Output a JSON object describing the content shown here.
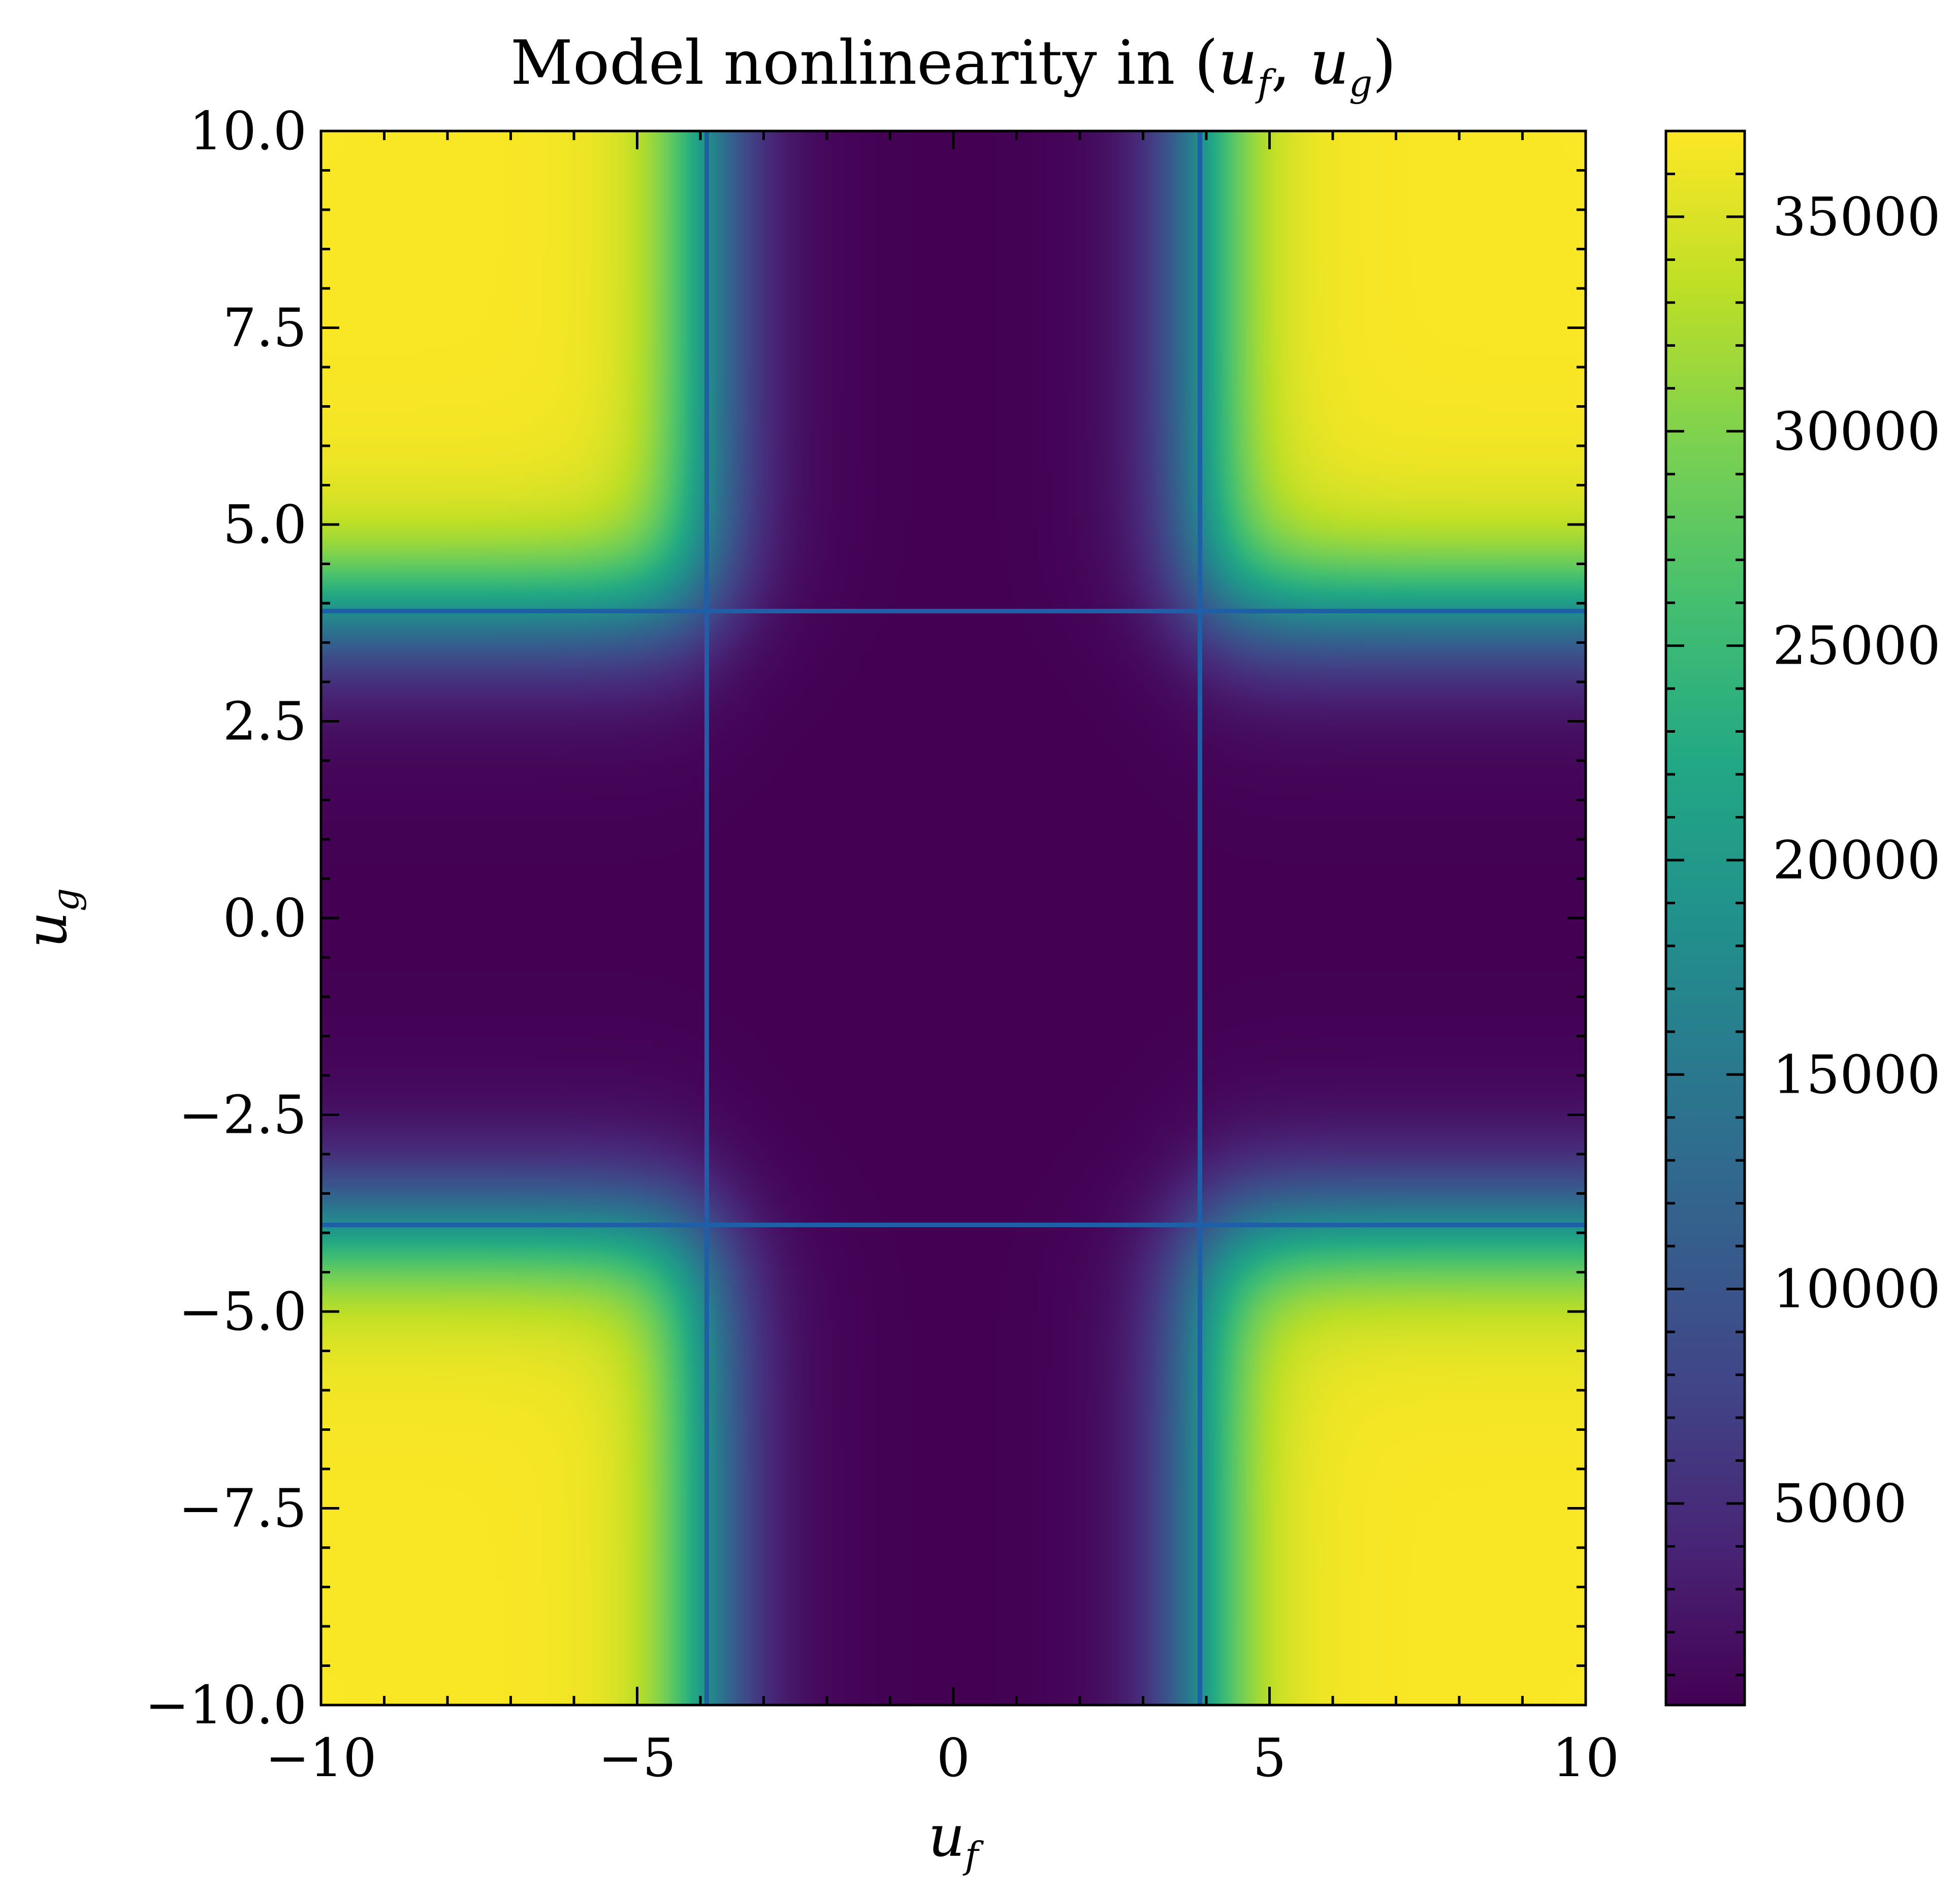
{
  "chart_data": {
    "type": "heatmap",
    "title": {
      "prefix": "Model nonlinearity in (",
      "var1": "u",
      "sub1": "f",
      "sep": ", ",
      "var2": "u",
      "sub2": "g",
      "suffix": ")"
    },
    "xlabel": {
      "var": "u",
      "sub": "f"
    },
    "ylabel": {
      "var": "u",
      "sub": "g"
    },
    "xlim": [
      -10,
      10
    ],
    "ylim": [
      -10,
      10
    ],
    "xticks": [
      -10,
      -5,
      0,
      5,
      10
    ],
    "xtick_labels": [
      "−10",
      "−5",
      "0",
      "5",
      "10"
    ],
    "yticks": [
      -10,
      -7.5,
      -5,
      -2.5,
      0,
      2.5,
      5,
      7.5,
      10
    ],
    "ytick_labels": [
      "−10.0",
      "−7.5",
      "−5.0",
      "−2.5",
      "0.0",
      "2.5",
      "5.0",
      "7.5",
      "10.0"
    ],
    "colorbar": {
      "colormap": "viridis",
      "vmin": 300,
      "vmax": 37000,
      "ticks": [
        5000,
        10000,
        15000,
        20000,
        25000,
        30000,
        35000
      ],
      "tick_labels": [
        "5000",
        "10000",
        "15000",
        "20000",
        "25000",
        "30000",
        "35000"
      ]
    },
    "field": {
      "description_of_regions": "low near center cross, saturated high in four corner quadrants",
      "threshold": 3.9,
      "low_value": 300,
      "high_value": 36800,
      "transition_width": 0.5
    },
    "boundary_lines": {
      "color": "#1f5fa8",
      "x": [
        -3.9,
        3.9
      ],
      "y": [
        -3.9,
        3.9
      ]
    },
    "grid": false
  }
}
